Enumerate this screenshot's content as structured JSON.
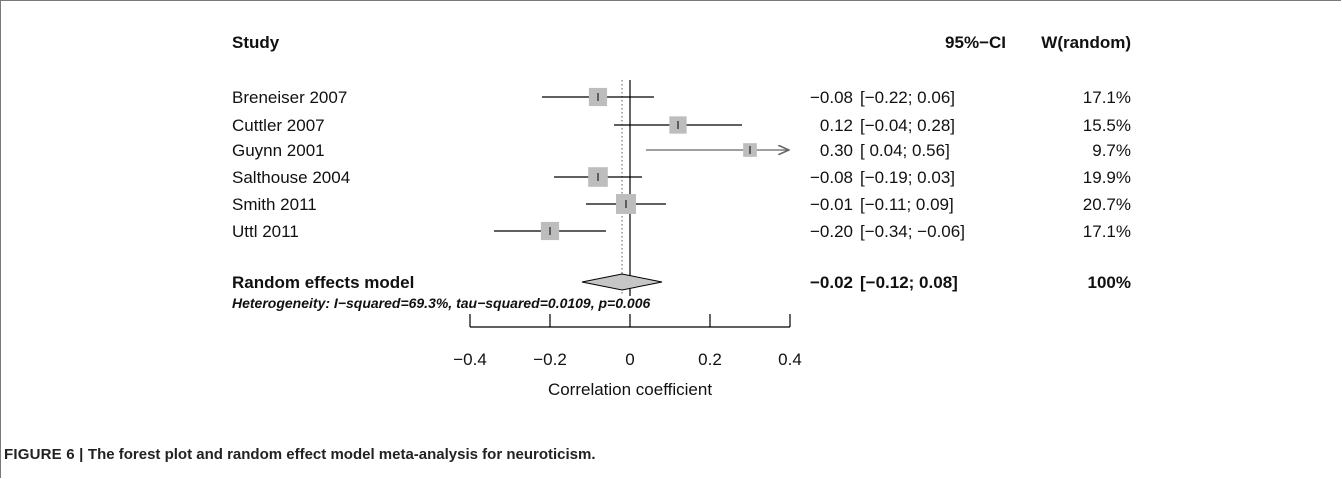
{
  "chart_data": {
    "type": "forest",
    "headers": {
      "study": "Study",
      "ci": "95%−CI",
      "weight": "W(random)"
    },
    "studies": [
      {
        "name": "Breneiser 2007",
        "estimate": -0.08,
        "lower": -0.22,
        "upper": 0.06,
        "estimate_text": "−0.08",
        "ci_text": "[−0.22;  0.06]",
        "weight_text": "17.1%",
        "weight": 17.1
      },
      {
        "name": "Cuttler 2007",
        "estimate": 0.12,
        "lower": -0.04,
        "upper": 0.28,
        "estimate_text": "0.12",
        "ci_text": "[−0.04;  0.28]",
        "weight_text": "15.5%",
        "weight": 15.5
      },
      {
        "name": "Guynn 2001",
        "estimate": 0.3,
        "lower": 0.04,
        "upper": 0.56,
        "estimate_text": "0.30",
        "ci_text": "[ 0.04;  0.56]",
        "weight_text": "9.7%",
        "weight": 9.7
      },
      {
        "name": "Salthouse 2004",
        "estimate": -0.08,
        "lower": -0.19,
        "upper": 0.03,
        "estimate_text": "−0.08",
        "ci_text": "[−0.19;  0.03]",
        "weight_text": "19.9%",
        "weight": 19.9
      },
      {
        "name": "Smith 2011",
        "estimate": -0.01,
        "lower": -0.11,
        "upper": 0.09,
        "estimate_text": "−0.01",
        "ci_text": "[−0.11;  0.09]",
        "weight_text": "20.7%",
        "weight": 20.7
      },
      {
        "name": "Uttl 2011",
        "estimate": -0.2,
        "lower": -0.34,
        "upper": -0.06,
        "estimate_text": "−0.20",
        "ci_text": "[−0.34; −0.06]",
        "weight_text": "17.1%",
        "weight": 17.1
      }
    ],
    "summary": {
      "name": "Random effects model",
      "estimate": -0.02,
      "lower": -0.12,
      "upper": 0.08,
      "estimate_text": "−0.02",
      "ci_text": "[−0.12;  0.08]",
      "weight_text": "100%"
    },
    "heterogeneity": "Heterogeneity: I−squared=69.3%, tau−squared=0.0109, p=0.006",
    "xlim": [
      -0.4,
      0.4
    ],
    "xticks": [
      -0.4,
      -0.2,
      0,
      0.2,
      0.4
    ],
    "xtick_labels": [
      "−0.4",
      "−0.2",
      "0",
      "0.2",
      "0.4"
    ],
    "xlabel": "Correlation coefficient",
    "reference_line": 0,
    "colors": {
      "box": "#bdbdbd",
      "diamond": "#c6c6c6",
      "line": "#000000",
      "dotted": "#777777",
      "arrow_line": "#666666"
    }
  },
  "caption": {
    "lead": "FIGURE 6 | ",
    "text": "The forest plot and random effect model meta-analysis for neuroticism."
  }
}
